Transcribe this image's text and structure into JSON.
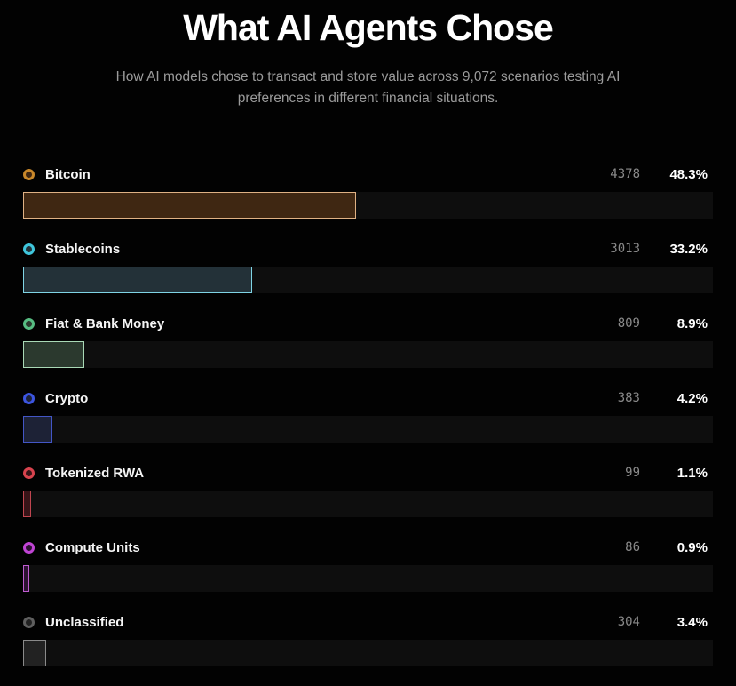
{
  "header": {
    "title": "What AI Agents Chose",
    "subtitle": "How AI models chose to transact and store value across 9,072 scenarios testing AI preferences in different financial situations."
  },
  "chart_data": {
    "type": "bar",
    "orientation": "horizontal",
    "title": "What AI Agents Chose",
    "total_scenarios": "9,072",
    "value_axis": "percent of scenarios",
    "xlim": [
      0,
      100
    ],
    "track_color": "#0e0e0e",
    "rows": [
      {
        "label": "Bitcoin",
        "count": "4378",
        "percent": "48.3%",
        "value_pct": 48.3,
        "ring_color": "#c9882a",
        "bar_fill": "#3f2712",
        "bar_border": "#dfb184"
      },
      {
        "label": "Stablecoins",
        "count": "3013",
        "percent": "33.2%",
        "value_pct": 33.2,
        "ring_color": "#3fc6dc",
        "bar_fill": "#233138",
        "bar_border": "#7fd4e4"
      },
      {
        "label": "Fiat & Bank Money",
        "count": "809",
        "percent": "8.9%",
        "value_pct": 8.9,
        "ring_color": "#57bd82",
        "bar_fill": "#2b392e",
        "bar_border": "#a9d9b6"
      },
      {
        "label": "Crypto",
        "count": "383",
        "percent": "4.2%",
        "value_pct": 4.2,
        "ring_color": "#3c55e0",
        "bar_fill": "#1d2236",
        "bar_border": "#4356c6"
      },
      {
        "label": "Tokenized RWA",
        "count": "99",
        "percent": "1.1%",
        "value_pct": 1.1,
        "ring_color": "#d8434e",
        "bar_fill": "#381418",
        "bar_border": "#c04650"
      },
      {
        "label": "Compute Units",
        "count": "86",
        "percent": "0.9%",
        "value_pct": 0.9,
        "ring_color": "#c044d4",
        "bar_fill": "#2c1232",
        "bar_border": "#bf5cd0"
      },
      {
        "label": "Unclassified",
        "count": "304",
        "percent": "3.4%",
        "value_pct": 3.4,
        "ring_color": "#5f5f5f",
        "bar_fill": "#222222",
        "bar_border": "#8a8a8a"
      }
    ]
  }
}
